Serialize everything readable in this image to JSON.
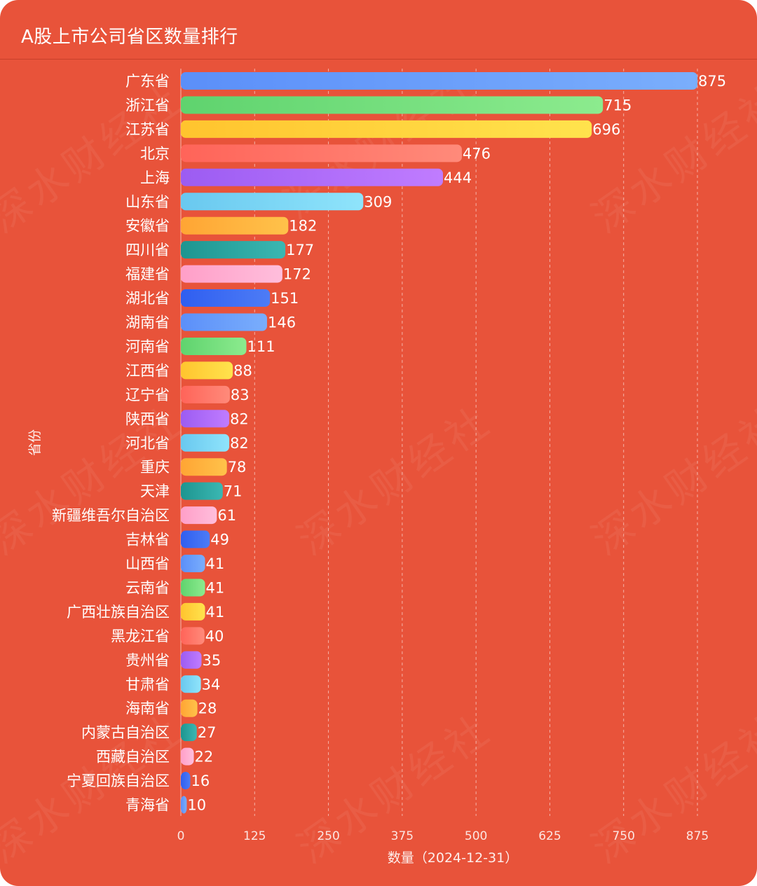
{
  "header": {
    "title": "A股上市公司省区数量排行"
  },
  "watermark": "深水财经社",
  "chart_data": {
    "type": "bar",
    "orientation": "horizontal",
    "title": "A股上市公司省区数量排行",
    "xlabel": "数量（2024-12-31）",
    "ylabel": "省份",
    "xlim": [
      0,
      875
    ],
    "xticks": [
      0,
      125,
      250,
      375,
      500,
      625,
      750,
      875
    ],
    "grid": "vertical-dashed",
    "categories": [
      "广东省",
      "浙江省",
      "江苏省",
      "北京",
      "上海",
      "山东省",
      "安徽省",
      "四川省",
      "福建省",
      "湖北省",
      "湖南省",
      "河南省",
      "江西省",
      "辽宁省",
      "陕西省",
      "河北省",
      "重庆",
      "天津",
      "新疆维吾尔自治区",
      "吉林省",
      "山西省",
      "云南省",
      "广西壮族自治区",
      "黑龙江省",
      "贵州省",
      "甘肃省",
      "海南省",
      "内蒙古自治区",
      "西藏自治区",
      "宁夏回族自治区",
      "青海省"
    ],
    "values": [
      875,
      715,
      696,
      476,
      444,
      309,
      182,
      177,
      172,
      151,
      146,
      111,
      88,
      83,
      82,
      82,
      78,
      71,
      61,
      49,
      41,
      41,
      41,
      40,
      35,
      34,
      28,
      27,
      22,
      16,
      10
    ],
    "palette": [
      [
        "#5b8ff9",
        "#7aaefc"
      ],
      [
        "#5fd36e",
        "#8ceb8e"
      ],
      [
        "#ffc42e",
        "#ffe34d"
      ],
      [
        "#ff6459",
        "#ff8a7a"
      ],
      [
        "#9c5cf2",
        "#c07cff"
      ],
      [
        "#69c8ef",
        "#8fe4fb"
      ],
      [
        "#ffa534",
        "#ffc24a"
      ],
      [
        "#1d9590",
        "#3bb7b2"
      ],
      [
        "#ff9fc8",
        "#ffbedc"
      ],
      [
        "#2f5ef0",
        "#4d7cf6"
      ]
    ]
  }
}
